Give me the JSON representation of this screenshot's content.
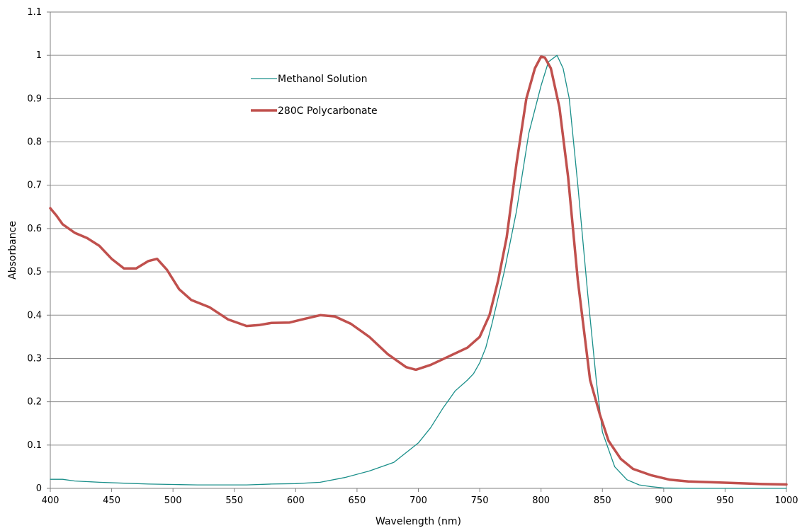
{
  "chart_data": {
    "type": "line",
    "title": "",
    "xlabel": "Wavelength (nm)",
    "ylabel": "Absorbance",
    "xlim": [
      400,
      1000
    ],
    "ylim": [
      0,
      1.1
    ],
    "x_ticks": [
      "400",
      "450",
      "500",
      "550",
      "600",
      "650",
      "700",
      "750",
      "800",
      "850",
      "900",
      "950",
      "1000"
    ],
    "y_ticks": [
      "0",
      "0.1",
      "0.2",
      "0.3",
      "0.4",
      "0.5",
      "0.6",
      "0.7",
      "0.8",
      "0.9",
      "1",
      "1.1"
    ],
    "grid": "horizontal",
    "legend_position": "upper-left-center",
    "series": [
      {
        "name": "Methanol Solution",
        "color": "#1a8f8a",
        "points": [
          [
            400,
            0.021
          ],
          [
            410,
            0.021
          ],
          [
            420,
            0.017
          ],
          [
            440,
            0.014
          ],
          [
            460,
            0.012
          ],
          [
            480,
            0.01
          ],
          [
            500,
            0.009
          ],
          [
            520,
            0.008
          ],
          [
            540,
            0.008
          ],
          [
            560,
            0.008
          ],
          [
            580,
            0.01
          ],
          [
            600,
            0.011
          ],
          [
            620,
            0.014
          ],
          [
            640,
            0.025
          ],
          [
            660,
            0.04
          ],
          [
            680,
            0.06
          ],
          [
            700,
            0.105
          ],
          [
            710,
            0.14
          ],
          [
            720,
            0.185
          ],
          [
            730,
            0.225
          ],
          [
            740,
            0.25
          ],
          [
            745,
            0.265
          ],
          [
            750,
            0.29
          ],
          [
            755,
            0.325
          ],
          [
            760,
            0.38
          ],
          [
            770,
            0.5
          ],
          [
            780,
            0.64
          ],
          [
            790,
            0.82
          ],
          [
            800,
            0.93
          ],
          [
            806,
            0.985
          ],
          [
            813,
            1.0
          ],
          [
            818,
            0.97
          ],
          [
            823,
            0.9
          ],
          [
            830,
            0.7
          ],
          [
            838,
            0.45
          ],
          [
            845,
            0.25
          ],
          [
            850,
            0.13
          ],
          [
            860,
            0.05
          ],
          [
            870,
            0.02
          ],
          [
            880,
            0.008
          ],
          [
            890,
            0.004
          ],
          [
            900,
            0.001
          ],
          [
            920,
            0.0
          ],
          [
            1000,
            0.0
          ]
        ]
      },
      {
        "name": "280C Polycarbonate",
        "color": "#c0504d",
        "points": [
          [
            400,
            0.647
          ],
          [
            405,
            0.63
          ],
          [
            410,
            0.61
          ],
          [
            420,
            0.59
          ],
          [
            430,
            0.578
          ],
          [
            440,
            0.56
          ],
          [
            450,
            0.53
          ],
          [
            460,
            0.508
          ],
          [
            470,
            0.508
          ],
          [
            480,
            0.525
          ],
          [
            487,
            0.53
          ],
          [
            495,
            0.505
          ],
          [
            505,
            0.46
          ],
          [
            515,
            0.435
          ],
          [
            530,
            0.418
          ],
          [
            545,
            0.39
          ],
          [
            560,
            0.375
          ],
          [
            570,
            0.377
          ],
          [
            580,
            0.382
          ],
          [
            595,
            0.383
          ],
          [
            605,
            0.39
          ],
          [
            620,
            0.4
          ],
          [
            632,
            0.397
          ],
          [
            645,
            0.38
          ],
          [
            660,
            0.35
          ],
          [
            675,
            0.31
          ],
          [
            690,
            0.28
          ],
          [
            698,
            0.274
          ],
          [
            710,
            0.285
          ],
          [
            725,
            0.305
          ],
          [
            740,
            0.325
          ],
          [
            750,
            0.35
          ],
          [
            758,
            0.4
          ],
          [
            765,
            0.48
          ],
          [
            772,
            0.58
          ],
          [
            780,
            0.75
          ],
          [
            788,
            0.9
          ],
          [
            795,
            0.97
          ],
          [
            800,
            0.997
          ],
          [
            803,
            0.995
          ],
          [
            808,
            0.97
          ],
          [
            815,
            0.88
          ],
          [
            822,
            0.72
          ],
          [
            830,
            0.48
          ],
          [
            840,
            0.25
          ],
          [
            848,
            0.17
          ],
          [
            855,
            0.11
          ],
          [
            865,
            0.068
          ],
          [
            875,
            0.045
          ],
          [
            890,
            0.03
          ],
          [
            905,
            0.02
          ],
          [
            920,
            0.016
          ],
          [
            950,
            0.013
          ],
          [
            980,
            0.01
          ],
          [
            1000,
            0.009
          ]
        ]
      }
    ]
  }
}
